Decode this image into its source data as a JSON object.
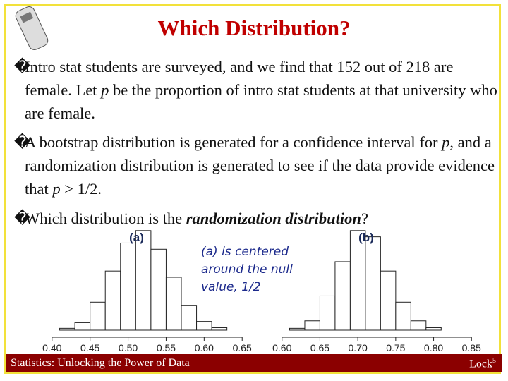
{
  "title": "Which Distribution?",
  "bullet_marker": "�",
  "bullets": [
    [
      {
        "text": "Intro stat students are surveyed, and we find that 152 out of 218 are female.  Let "
      },
      {
        "text": "p",
        "style": "italic"
      },
      {
        "text": " be the proportion of intro stat students at that university who are female."
      }
    ],
    [
      {
        "text": "A bootstrap distribution is generated for a confidence interval for "
      },
      {
        "text": "p",
        "style": "italic"
      },
      {
        "text": ", and a randomization distribution is generated to see if the data provide evidence that "
      },
      {
        "text": "p",
        "style": "italic"
      },
      {
        "text": " > 1/2."
      }
    ],
    [
      {
        "text": "Which distribution is the "
      },
      {
        "text": "randomization distribution",
        "style": "bold-italic"
      },
      {
        "text": "?"
      }
    ]
  ],
  "annotation": [
    "(a) is centered",
    "around the null",
    "value, 1/2"
  ],
  "footer": {
    "left": "Statistics: Unlocking the Power of Data",
    "right": "Lock",
    "right_sup": "5"
  },
  "chart_data": [
    {
      "type": "histogram",
      "title": "(a)",
      "color": "#ffffff",
      "bins": [
        0.41,
        0.43,
        0.45,
        0.47,
        0.49,
        0.51,
        0.53,
        0.55,
        0.57,
        0.59,
        0.61,
        0.63
      ],
      "values": [
        3,
        12,
        45,
        95,
        140,
        160,
        130,
        85,
        40,
        14,
        4
      ],
      "xlim": [
        0.39,
        0.66
      ],
      "ylim": [
        0,
        170
      ],
      "xticks": [
        {
          "value": 0.4,
          "label": "0.40"
        },
        {
          "value": 0.45,
          "label": "0.45"
        },
        {
          "value": 0.5,
          "label": "0.50"
        },
        {
          "value": 0.55,
          "label": "0.55"
        },
        {
          "value": 0.6,
          "label": "0.60"
        },
        {
          "value": 0.65,
          "label": "0.65"
        }
      ]
    },
    {
      "type": "histogram",
      "title": "(b)",
      "color": "#ffffff",
      "bins": [
        0.61,
        0.63,
        0.65,
        0.67,
        0.69,
        0.71,
        0.73,
        0.75,
        0.77,
        0.79,
        0.81
      ],
      "values": [
        3,
        15,
        55,
        110,
        160,
        150,
        95,
        45,
        15,
        4
      ],
      "xlim": [
        0.59,
        0.86
      ],
      "ylim": [
        0,
        170
      ],
      "xticks": [
        {
          "value": 0.6,
          "label": "0.60"
        },
        {
          "value": 0.65,
          "label": "0.65"
        },
        {
          "value": 0.7,
          "label": "0.70"
        },
        {
          "value": 0.75,
          "label": "0.75"
        },
        {
          "value": 0.8,
          "label": "0.80"
        },
        {
          "value": 0.85,
          "label": "0.85"
        }
      ]
    }
  ]
}
